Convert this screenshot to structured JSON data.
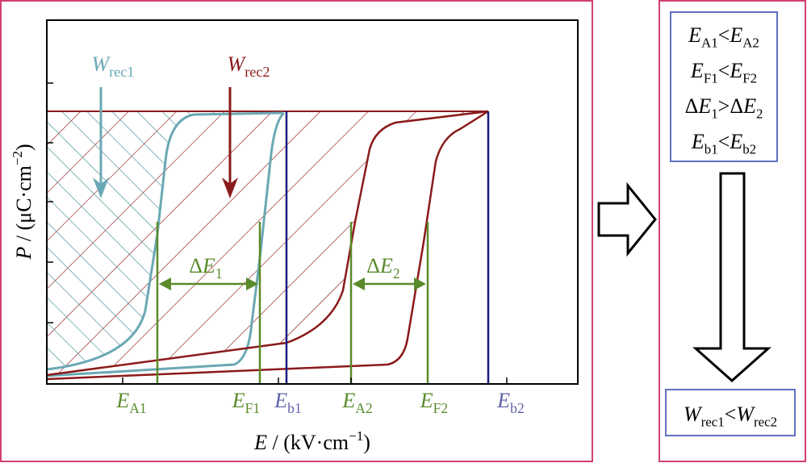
{
  "axes": {
    "y_label": {
      "symbol": "P",
      "unit": " / (μC·cm",
      "exponent": "−2",
      "close": ")"
    },
    "x_label": {
      "symbol": "E",
      "unit": " / (kV·cm",
      "exponent": "−1",
      "close": ")"
    }
  },
  "x_markers": [
    {
      "symbol": "E",
      "sub": "A1"
    },
    {
      "symbol": "E",
      "sub": "F1"
    },
    {
      "symbol": "E",
      "sub": "b1"
    },
    {
      "symbol": "E",
      "sub": "A2"
    },
    {
      "symbol": "E",
      "sub": "F2"
    },
    {
      "symbol": "E",
      "sub": "b2"
    }
  ],
  "annotations": {
    "w_rec1": {
      "symbol": "W",
      "sub": "rec1"
    },
    "w_rec2": {
      "symbol": "W",
      "sub": "rec2"
    },
    "delta_e1": {
      "prefix": "Δ",
      "symbol": "E",
      "sub": "1"
    },
    "delta_e2": {
      "prefix": "Δ",
      "symbol": "E",
      "sub": "2"
    }
  },
  "conditions": [
    {
      "left": {
        "symbol": "E",
        "sub": "A1"
      },
      "op": "<",
      "right": {
        "symbol": "E",
        "sub": "A2"
      }
    },
    {
      "left": {
        "symbol": "E",
        "sub": "F1"
      },
      "op": "<",
      "right": {
        "symbol": "E",
        "sub": "F2"
      }
    },
    {
      "left": {
        "prefix": "Δ",
        "symbol": "E",
        "sub": "1"
      },
      "op": ">",
      "right": {
        "prefix": "Δ",
        "symbol": "E",
        "sub": "2"
      }
    },
    {
      "left": {
        "symbol": "E",
        "sub": "b1"
      },
      "op": "<",
      "right": {
        "symbol": "E",
        "sub": "b2"
      }
    }
  ],
  "conclusion": {
    "left": {
      "symbol": "W",
      "sub": "rec1"
    },
    "op": "<",
    "right": {
      "symbol": "W",
      "sub": "rec2"
    }
  }
}
